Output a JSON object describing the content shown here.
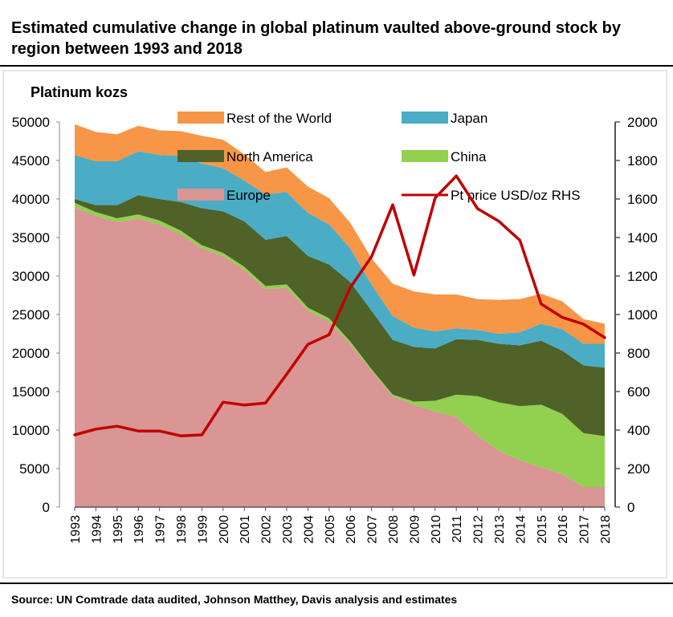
{
  "title": "Estimated cumulative change in global platinum vaulted above-ground stock by region between 1993 and 2018",
  "source": "Source: UN Comtrade data audited, Johnson Matthey, Davis analysis and estimates",
  "chart_data": {
    "type": "area",
    "stacked": true,
    "ylabel_left": "Platinum kozs",
    "ylim_left": [
      0,
      50000
    ],
    "yticks_left": [
      0,
      5000,
      10000,
      15000,
      20000,
      25000,
      30000,
      35000,
      40000,
      45000,
      50000
    ],
    "ylim_right": [
      0,
      2000
    ],
    "yticks_right": [
      0,
      200,
      400,
      600,
      800,
      1000,
      1200,
      1400,
      1600,
      1800,
      2000
    ],
    "legend_placement": "top",
    "categories": [
      "1993",
      "1994",
      "1995",
      "1996",
      "1997",
      "1998",
      "1999",
      "2000",
      "2001",
      "2002",
      "2003",
      "2004",
      "2005",
      "2006",
      "2007",
      "2008",
      "2009",
      "2010",
      "2011",
      "2012",
      "2013",
      "2014",
      "2015",
      "2016",
      "2017",
      "2018"
    ],
    "series": [
      {
        "name": "Europe",
        "color": "#D99694",
        "values": [
          38900,
          37800,
          37000,
          37500,
          36700,
          35400,
          33600,
          32600,
          30800,
          28300,
          28500,
          25500,
          24100,
          21200,
          17700,
          14400,
          13300,
          12400,
          11700,
          9300,
          7300,
          6100,
          5200,
          4300,
          2600,
          2600
        ]
      },
      {
        "name": "China",
        "color": "#92D050",
        "values": [
          600,
          500,
          500,
          500,
          500,
          500,
          400,
          400,
          400,
          400,
          400,
          400,
          400,
          300,
          200,
          200,
          400,
          1400,
          2900,
          5100,
          6300,
          7000,
          8100,
          7800,
          7000,
          6600
        ]
      },
      {
        "name": "North America",
        "color": "#4F6228",
        "values": [
          500,
          900,
          1700,
          2500,
          2800,
          3700,
          4800,
          5400,
          5900,
          6000,
          6300,
          6700,
          7000,
          7700,
          7600,
          7100,
          7100,
          6800,
          7200,
          7300,
          7600,
          7900,
          8300,
          8200,
          8800,
          8900
        ]
      },
      {
        "name": "Japan",
        "color": "#4BACC6",
        "values": [
          5700,
          5700,
          5700,
          5700,
          5700,
          6000,
          5800,
          5600,
          5300,
          5900,
          5700,
          5600,
          5200,
          4400,
          3400,
          3100,
          2500,
          2200,
          1400,
          1300,
          1300,
          1700,
          2200,
          2800,
          2800,
          3100
        ]
      },
      {
        "name": "Rest of the World",
        "color": "#F79646",
        "values": [
          4000,
          3800,
          3500,
          3300,
          3200,
          3200,
          3600,
          3700,
          3400,
          2900,
          3200,
          3400,
          3400,
          3300,
          3400,
          4200,
          4700,
          4800,
          4400,
          4000,
          4400,
          4300,
          3900,
          3600,
          3200,
          2600
        ]
      }
    ],
    "line_series": [
      {
        "name": "Pt price USD/oz RHS",
        "axis": "right",
        "color": "#C00000",
        "values": [
          375,
          405,
          420,
          395,
          395,
          370,
          375,
          545,
          530,
          540,
          690,
          845,
          895,
          1140,
          1300,
          1570,
          1205,
          1605,
          1720,
          1550,
          1485,
          1385,
          1055,
          985,
          950,
          880
        ]
      }
    ],
    "legend": [
      {
        "label": "Rest of the World",
        "color": "#F79646",
        "kind": "area"
      },
      {
        "label": "Japan",
        "color": "#4BACC6",
        "kind": "area"
      },
      {
        "label": "North America",
        "color": "#4F6228",
        "kind": "area"
      },
      {
        "label": "China",
        "color": "#92D050",
        "kind": "area"
      },
      {
        "label": "Europe",
        "color": "#D99694",
        "kind": "area"
      },
      {
        "label": "Pt price USD/oz RHS",
        "color": "#C00000",
        "kind": "line"
      }
    ]
  }
}
